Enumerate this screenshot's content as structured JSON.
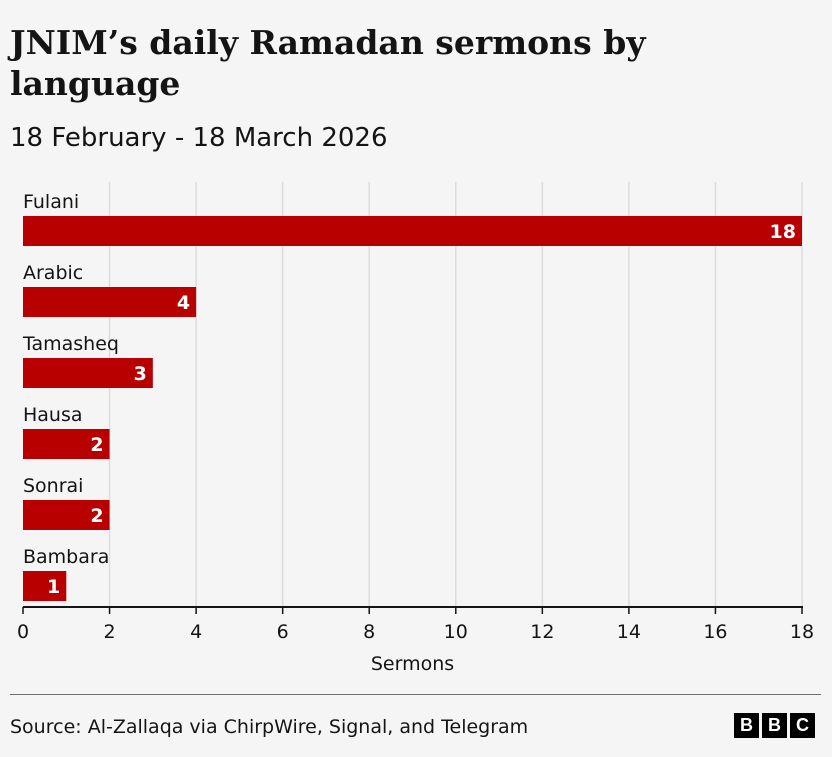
{
  "header": {
    "title": "JNIM’s daily Ramadan sermons by language",
    "subtitle": "18 February - 18 March 2026"
  },
  "footer": {
    "source": "Source: Al-Zallaqa via ChirpWire, Signal, and Telegram",
    "logo_letters": [
      "B",
      "B",
      "C"
    ]
  },
  "chart_data": {
    "type": "bar",
    "orientation": "horizontal",
    "title": "JNIM’s daily Ramadan sermons by language",
    "subtitle": "18 February - 18 March 2026",
    "categories": [
      "Fulani",
      "Arabic",
      "Tamasheq",
      "Hausa",
      "Sonrai",
      "Bambara"
    ],
    "values": [
      18,
      4,
      3,
      2,
      2,
      1
    ],
    "xlabel": "Sermons",
    "ylabel": "",
    "xlim": [
      0,
      18
    ],
    "xticks": [
      0,
      2,
      4,
      6,
      8,
      10,
      12,
      14,
      16,
      18
    ],
    "grid": true,
    "bar_color": "#b80000",
    "data_labels": true
  }
}
